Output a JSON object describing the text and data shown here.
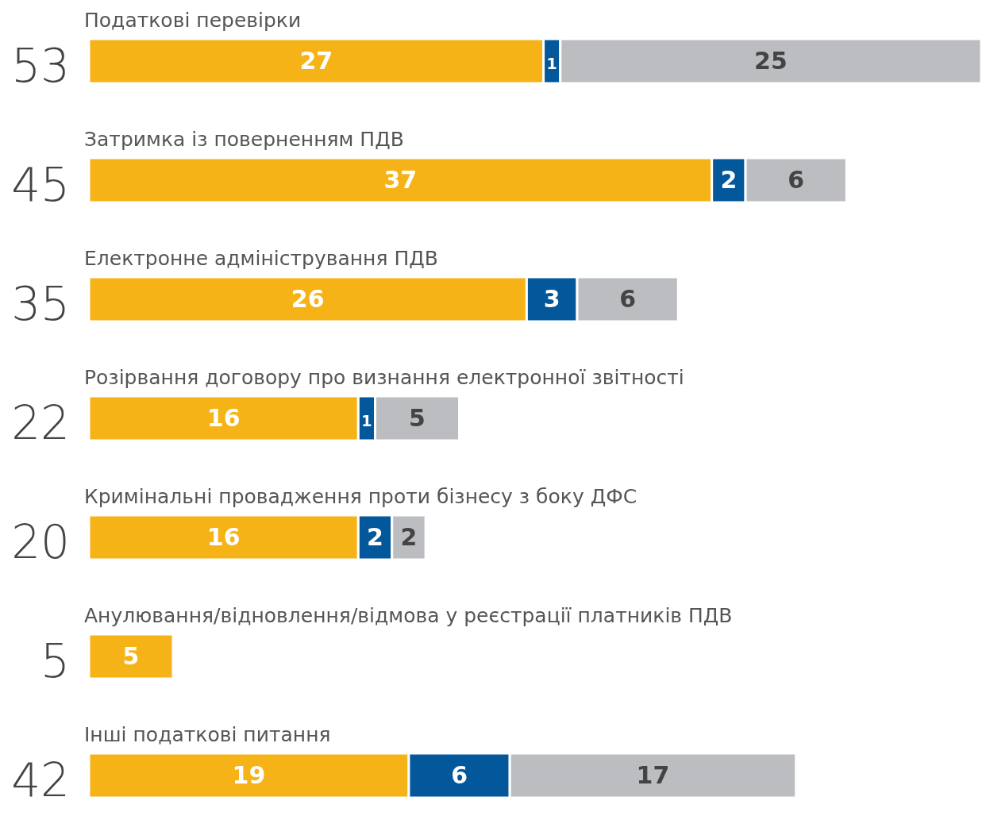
{
  "chart_data": {
    "type": "bar",
    "orientation": "horizontal",
    "stacked": true,
    "data_labels": true,
    "categories": [
      "Податкові перевірки",
      "Затримка із поверненням ПДВ",
      "Електронне адміністрування ПДВ",
      "Розірвання договору про визнання електронної звітності",
      "Кримінальні провадження проти бізнесу з боку ДФС",
      "Анулювання/відновлення/відмова у реєстрації платників ПДВ",
      "Інші податкові питання"
    ],
    "series": [
      {
        "color": "#f5b317",
        "values": [
          27,
          37,
          26,
          16,
          16,
          5,
          19
        ]
      },
      {
        "color": "#03579b",
        "values": [
          1,
          2,
          3,
          1,
          2,
          null,
          6
        ]
      },
      {
        "color": "#bcbdc0",
        "values": [
          25,
          6,
          6,
          5,
          2,
          null,
          17
        ]
      }
    ],
    "totals": [
      "53",
      "45",
      "35",
      "22",
      "20",
      "5",
      "42"
    ]
  }
}
